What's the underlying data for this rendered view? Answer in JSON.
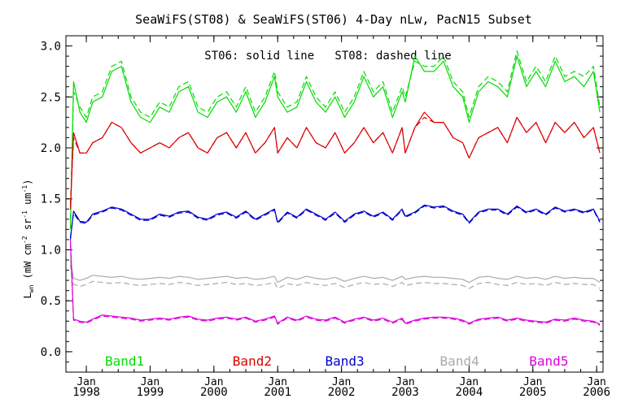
{
  "chart_data": {
    "type": "line",
    "title": "SeaWiFS(ST08) & SeaWiFS(ST06) 4-Day nLw, PacN15 Subset",
    "annotation": "ST06: solid line   ST08: dashed line",
    "ylabel": "L_wn (mW cm^-2 sr^-1 um^-1)",
    "ylabel_parts": {
      "main": "L",
      "sub": "wn",
      "units_open": " (mW cm",
      "e1": "-2",
      "mid": " sr",
      "e2": "-1",
      "um": " um",
      "e3": "-1",
      "close": ")"
    },
    "xlabel": "",
    "ylim": [
      -0.2,
      3.1
    ],
    "xlim": [
      1997.68,
      2006.1
    ],
    "y_ticks": [
      0.0,
      0.5,
      1.0,
      1.5,
      2.0,
      2.5,
      3.0
    ],
    "y_tick_labels": [
      "0.0",
      "0.5",
      "1.0",
      "1.5",
      "2.0",
      "2.5",
      "3.0"
    ],
    "x_ticks": [
      1998,
      1999,
      2000,
      2001,
      2002,
      2003,
      2004,
      2005,
      2006
    ],
    "x_tick_labels_top": [
      "Jan",
      "Jan",
      "Jan",
      "Jan",
      "Jan",
      "Jan",
      "Jan",
      "Jan",
      "Jan"
    ],
    "x_tick_labels_bottom": [
      "1998",
      "1999",
      "2000",
      "2001",
      "2002",
      "2003",
      "2004",
      "2005",
      "2006"
    ],
    "legend": [
      {
        "label": "Band1",
        "color": "#00dd00",
        "position": 1998.6
      },
      {
        "label": "Band2",
        "color": "#dd0000",
        "position": 2000.6
      },
      {
        "label": "Band3",
        "color": "#0000cc",
        "position": 2002.05
      },
      {
        "label": "Band4",
        "color": "#aaaaaa",
        "position": 2003.85
      },
      {
        "label": "Band5",
        "color": "#dd00dd",
        "position": 2005.25
      }
    ],
    "x": [
      1997.75,
      1997.8,
      1997.9,
      1998.0,
      1998.1,
      1998.25,
      1998.4,
      1998.55,
      1998.7,
      1998.85,
      1999.0,
      1999.15,
      1999.3,
      1999.45,
      1999.6,
      1999.75,
      1999.9,
      2000.05,
      2000.2,
      2000.35,
      2000.5,
      2000.65,
      2000.8,
      2000.95,
      2001.0,
      2001.15,
      2001.3,
      2001.45,
      2001.6,
      2001.75,
      2001.9,
      2002.05,
      2002.2,
      2002.35,
      2002.5,
      2002.65,
      2002.8,
      2002.95,
      2003.0,
      2003.15,
      2003.3,
      2003.45,
      2003.6,
      2003.75,
      2003.9,
      2004.0,
      2004.15,
      2004.3,
      2004.45,
      2004.6,
      2004.75,
      2004.9,
      2005.05,
      2005.2,
      2005.35,
      2005.5,
      2005.65,
      2005.8,
      2005.95,
      2006.05
    ],
    "series": [
      {
        "band": "Band1",
        "sensor": "ST06",
        "dash": false,
        "color": "#00dd00",
        "values": [
          1.2,
          2.65,
          2.35,
          2.25,
          2.45,
          2.5,
          2.75,
          2.8,
          2.45,
          2.3,
          2.25,
          2.4,
          2.35,
          2.55,
          2.6,
          2.35,
          2.3,
          2.45,
          2.5,
          2.35,
          2.55,
          2.3,
          2.45,
          2.7,
          2.5,
          2.35,
          2.4,
          2.65,
          2.45,
          2.35,
          2.5,
          2.3,
          2.45,
          2.7,
          2.5,
          2.6,
          2.3,
          2.55,
          2.45,
          2.9,
          2.75,
          2.75,
          2.85,
          2.6,
          2.5,
          2.25,
          2.55,
          2.65,
          2.6,
          2.5,
          2.9,
          2.6,
          2.75,
          2.6,
          2.85,
          2.65,
          2.7,
          2.6,
          2.75,
          2.35
        ]
      },
      {
        "band": "Band1",
        "sensor": "ST08",
        "dash": true,
        "color": "#00dd00",
        "values": [
          1.3,
          2.55,
          2.4,
          2.3,
          2.5,
          2.55,
          2.8,
          2.85,
          2.5,
          2.35,
          2.3,
          2.45,
          2.4,
          2.6,
          2.65,
          2.4,
          2.35,
          2.5,
          2.55,
          2.4,
          2.6,
          2.35,
          2.5,
          2.75,
          2.55,
          2.4,
          2.45,
          2.7,
          2.5,
          2.4,
          2.55,
          2.35,
          2.5,
          2.75,
          2.55,
          2.65,
          2.35,
          2.6,
          2.5,
          2.85,
          2.8,
          2.8,
          2.9,
          2.65,
          2.55,
          2.3,
          2.6,
          2.7,
          2.65,
          2.55,
          2.95,
          2.65,
          2.8,
          2.65,
          2.9,
          2.7,
          2.75,
          2.7,
          2.8,
          2.4
        ]
      },
      {
        "band": "Band2",
        "sensor": "ST06",
        "dash": false,
        "color": "#dd0000",
        "values": [
          1.4,
          2.15,
          1.95,
          1.95,
          2.05,
          2.1,
          2.25,
          2.2,
          2.05,
          1.95,
          2.0,
          2.05,
          2.0,
          2.1,
          2.15,
          2.0,
          1.95,
          2.1,
          2.15,
          2.0,
          2.15,
          1.95,
          2.05,
          2.2,
          1.95,
          2.1,
          2.0,
          2.2,
          2.05,
          2.0,
          2.15,
          1.95,
          2.05,
          2.2,
          2.05,
          2.15,
          1.95,
          2.2,
          1.95,
          2.2,
          2.35,
          2.25,
          2.25,
          2.1,
          2.05,
          1.9,
          2.1,
          2.15,
          2.2,
          2.05,
          2.3,
          2.15,
          2.25,
          2.05,
          2.25,
          2.15,
          2.25,
          2.1,
          2.2,
          1.95
        ]
      },
      {
        "band": "Band2",
        "sensor": "ST08",
        "dash": true,
        "color": "#dd0000",
        "values": [
          1.45,
          2.1,
          1.95,
          1.95,
          2.05,
          2.1,
          2.25,
          2.2,
          2.05,
          1.95,
          2.0,
          2.05,
          2.0,
          2.1,
          2.15,
          2.0,
          1.95,
          2.1,
          2.15,
          2.0,
          2.15,
          1.95,
          2.05,
          2.2,
          1.95,
          2.1,
          2.0,
          2.2,
          2.05,
          2.0,
          2.15,
          1.95,
          2.05,
          2.2,
          2.05,
          2.15,
          1.95,
          2.2,
          1.95,
          2.2,
          2.3,
          2.25,
          2.25,
          2.1,
          2.05,
          1.9,
          2.1,
          2.15,
          2.2,
          2.05,
          2.3,
          2.15,
          2.25,
          2.05,
          2.25,
          2.15,
          2.25,
          2.1,
          2.2,
          1.95
        ]
      },
      {
        "band": "Band3",
        "sensor": "ST06",
        "dash": false,
        "color": "#0000cc",
        "values": [
          1.1,
          1.38,
          1.28,
          1.27,
          1.35,
          1.38,
          1.42,
          1.4,
          1.35,
          1.3,
          1.3,
          1.35,
          1.33,
          1.37,
          1.38,
          1.32,
          1.3,
          1.35,
          1.37,
          1.32,
          1.38,
          1.3,
          1.35,
          1.4,
          1.27,
          1.37,
          1.32,
          1.4,
          1.35,
          1.3,
          1.37,
          1.28,
          1.35,
          1.38,
          1.33,
          1.37,
          1.3,
          1.4,
          1.33,
          1.37,
          1.44,
          1.42,
          1.43,
          1.38,
          1.35,
          1.27,
          1.37,
          1.4,
          1.4,
          1.35,
          1.43,
          1.37,
          1.4,
          1.35,
          1.42,
          1.38,
          1.4,
          1.37,
          1.4,
          1.28
        ]
      },
      {
        "band": "Band3",
        "sensor": "ST08",
        "dash": true,
        "color": "#0000cc",
        "values": [
          1.12,
          1.36,
          1.27,
          1.26,
          1.34,
          1.37,
          1.41,
          1.39,
          1.34,
          1.29,
          1.29,
          1.34,
          1.32,
          1.36,
          1.37,
          1.31,
          1.29,
          1.34,
          1.36,
          1.31,
          1.37,
          1.29,
          1.34,
          1.39,
          1.26,
          1.36,
          1.31,
          1.39,
          1.34,
          1.29,
          1.36,
          1.27,
          1.34,
          1.37,
          1.32,
          1.36,
          1.29,
          1.39,
          1.32,
          1.36,
          1.43,
          1.41,
          1.42,
          1.37,
          1.34,
          1.26,
          1.36,
          1.39,
          1.39,
          1.34,
          1.42,
          1.36,
          1.39,
          1.34,
          1.41,
          1.37,
          1.39,
          1.36,
          1.39,
          1.27
        ]
      },
      {
        "band": "Band4",
        "sensor": "ST06",
        "dash": false,
        "color": "#aaaaaa",
        "values": [
          0.9,
          0.72,
          0.7,
          0.72,
          0.75,
          0.74,
          0.73,
          0.74,
          0.72,
          0.71,
          0.72,
          0.73,
          0.72,
          0.74,
          0.73,
          0.71,
          0.72,
          0.73,
          0.74,
          0.72,
          0.73,
          0.71,
          0.72,
          0.74,
          0.68,
          0.73,
          0.71,
          0.74,
          0.72,
          0.71,
          0.73,
          0.69,
          0.72,
          0.74,
          0.72,
          0.73,
          0.7,
          0.74,
          0.71,
          0.73,
          0.74,
          0.73,
          0.73,
          0.72,
          0.71,
          0.68,
          0.73,
          0.74,
          0.72,
          0.71,
          0.74,
          0.72,
          0.73,
          0.71,
          0.74,
          0.72,
          0.73,
          0.72,
          0.72,
          0.68
        ]
      },
      {
        "band": "Band4",
        "sensor": "ST08",
        "dash": true,
        "color": "#aaaaaa",
        "values": [
          0.85,
          0.66,
          0.64,
          0.66,
          0.69,
          0.68,
          0.67,
          0.68,
          0.66,
          0.65,
          0.66,
          0.67,
          0.66,
          0.68,
          0.67,
          0.65,
          0.66,
          0.67,
          0.68,
          0.66,
          0.67,
          0.65,
          0.66,
          0.68,
          0.62,
          0.67,
          0.65,
          0.68,
          0.66,
          0.65,
          0.67,
          0.63,
          0.66,
          0.68,
          0.66,
          0.67,
          0.64,
          0.68,
          0.65,
          0.67,
          0.68,
          0.67,
          0.67,
          0.66,
          0.65,
          0.62,
          0.67,
          0.68,
          0.66,
          0.65,
          0.68,
          0.66,
          0.67,
          0.65,
          0.68,
          0.66,
          0.67,
          0.66,
          0.66,
          0.62
        ]
      },
      {
        "band": "Band5",
        "sensor": "ST06",
        "dash": false,
        "color": "#dd00dd",
        "values": [
          1.1,
          0.32,
          0.3,
          0.29,
          0.32,
          0.36,
          0.35,
          0.34,
          0.33,
          0.31,
          0.32,
          0.33,
          0.32,
          0.34,
          0.35,
          0.32,
          0.31,
          0.33,
          0.34,
          0.32,
          0.34,
          0.3,
          0.32,
          0.35,
          0.28,
          0.34,
          0.31,
          0.35,
          0.32,
          0.31,
          0.34,
          0.29,
          0.32,
          0.34,
          0.31,
          0.33,
          0.29,
          0.33,
          0.28,
          0.31,
          0.33,
          0.34,
          0.34,
          0.33,
          0.31,
          0.28,
          0.32,
          0.33,
          0.34,
          0.31,
          0.33,
          0.31,
          0.3,
          0.29,
          0.32,
          0.31,
          0.33,
          0.31,
          0.3,
          0.27
        ]
      },
      {
        "band": "Band5",
        "sensor": "ST08",
        "dash": true,
        "color": "#dd00dd",
        "values": [
          1.05,
          0.31,
          0.29,
          0.28,
          0.31,
          0.35,
          0.34,
          0.33,
          0.32,
          0.3,
          0.31,
          0.32,
          0.31,
          0.33,
          0.34,
          0.31,
          0.3,
          0.32,
          0.33,
          0.31,
          0.33,
          0.29,
          0.31,
          0.34,
          0.27,
          0.33,
          0.3,
          0.34,
          0.31,
          0.3,
          0.33,
          0.28,
          0.31,
          0.33,
          0.3,
          0.32,
          0.28,
          0.32,
          0.27,
          0.3,
          0.32,
          0.33,
          0.33,
          0.32,
          0.3,
          0.27,
          0.31,
          0.32,
          0.33,
          0.3,
          0.32,
          0.3,
          0.29,
          0.28,
          0.31,
          0.3,
          0.32,
          0.3,
          0.29,
          0.26
        ]
      }
    ]
  }
}
